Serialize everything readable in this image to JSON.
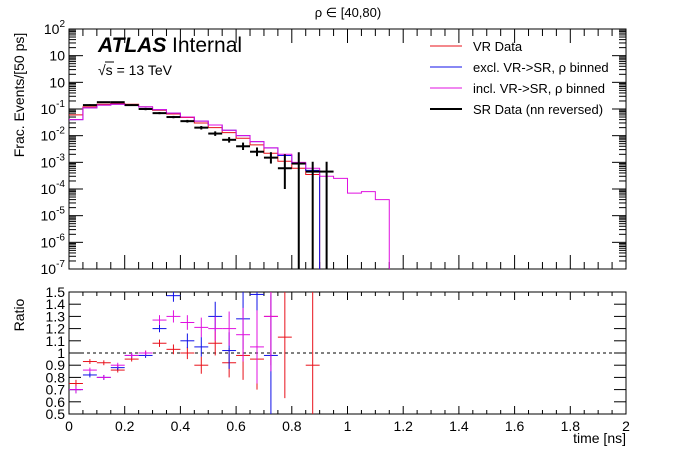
{
  "chart_data": [
    {
      "type": "line",
      "title": "ρ ∈ [40,80)",
      "experiment": "ATLAS",
      "status": "Internal",
      "energy_root": "√s",
      "energy_value": " = 13 TeV",
      "ylabel": "Frac. Events/[50 ps]",
      "yscale": "log",
      "ylim": [
        1e-07,
        100
      ],
      "xlim": [
        0,
        2
      ],
      "bin_width": 0.05,
      "y_ticks": [
        {
          "v": -7,
          "exp": "-7"
        },
        {
          "v": -6,
          "exp": "-6"
        },
        {
          "v": -5,
          "exp": "-5"
        },
        {
          "v": -4,
          "exp": "-4"
        },
        {
          "v": -3,
          "exp": "-3"
        },
        {
          "v": -2,
          "exp": "-2"
        },
        {
          "v": -1,
          "exp": "-1"
        },
        {
          "v": 0,
          "exp": ""
        },
        {
          "v": 1,
          "exp": ""
        },
        {
          "v": 2,
          "exp": "2"
        }
      ],
      "legend_position": "top-right",
      "legend": [
        {
          "label": "VR Data",
          "color": "#e8101a"
        },
        {
          "label": "excl. VR->SR, ρ binned",
          "color": "#1010e8"
        },
        {
          "label": "incl. VR->SR, ρ binned",
          "color": "#e010e0"
        },
        {
          "label": "SR Data (nn reversed)",
          "color": "#000000"
        }
      ],
      "series": [
        {
          "name": "VR Data",
          "color": "#e8101a",
          "kind": "step",
          "values": [
            0.06,
            0.12,
            0.15,
            0.16,
            0.15,
            0.12,
            0.09,
            0.065,
            0.048,
            0.03,
            0.02,
            0.013,
            0.008,
            0.0045,
            0.0022,
            0.0011,
            0.0006,
            0.00035
          ]
        },
        {
          "name": "excl. VR->SR, ρ binned",
          "color": "#1010e8",
          "kind": "step",
          "values": [
            0.04,
            0.11,
            0.14,
            0.15,
            0.14,
            0.12,
            0.095,
            0.07,
            0.05,
            0.035,
            0.025,
            0.016,
            0.01,
            0.006,
            0.0035,
            0.0018,
            0.0009,
            0.0005
          ]
        },
        {
          "name": "incl. VR->SR, ρ binned",
          "color": "#e010e0",
          "kind": "step",
          "values": [
            0.04,
            0.11,
            0.14,
            0.15,
            0.14,
            0.12,
            0.095,
            0.07,
            0.05,
            0.035,
            0.025,
            0.016,
            0.01,
            0.006,
            0.0035,
            0.002,
            0.001,
            0.0006,
            0.0003,
            0.00025,
            7e-05,
            8e-05,
            4e-05
          ]
        },
        {
          "name": "SR Data (nn reversed)",
          "color": "#000000",
          "kind": "step-err",
          "values": [
            null,
            0.14,
            0.18,
            0.18,
            0.14,
            0.1,
            0.07,
            0.05,
            0.035,
            0.02,
            0.012,
            0.007,
            0.004,
            0.0025,
            0.0015,
            0.0006,
            0.0009,
            0.00045,
            0.00045
          ],
          "err_lo": [
            null,
            0.13,
            0.17,
            0.17,
            0.13,
            0.09,
            0.064,
            0.045,
            0.031,
            0.017,
            0.0098,
            0.0055,
            0.0029,
            0.0017,
            0.0009,
            0.0001,
            1e-07,
            1e-07,
            1e-07
          ],
          "err_hi": [
            null,
            0.15,
            0.19,
            0.19,
            0.15,
            0.11,
            0.077,
            0.055,
            0.039,
            0.023,
            0.0145,
            0.0088,
            0.0055,
            0.0036,
            0.0024,
            0.002,
            0.0024,
            0.00105,
            0.00105
          ]
        }
      ]
    },
    {
      "type": "scatter",
      "ylabel": "Ratio",
      "xlabel": "time [ns]",
      "xlim": [
        0,
        2
      ],
      "ylim": [
        0.5,
        1.5
      ],
      "x_ticks": [
        "0",
        "0.2",
        "0.4",
        "0.6",
        "0.8",
        "1",
        "1.2",
        "1.4",
        "1.6",
        "1.8",
        "2"
      ],
      "y_ticks": [
        "0.5",
        "0.6",
        "0.7",
        "0.8",
        "0.9",
        "1",
        "1.1",
        "1.2",
        "1.3",
        "1.4",
        "1.5"
      ],
      "reference_line": 1,
      "series": [
        {
          "name": "VR Data",
          "color": "#e8101a",
          "x": [
            0.025,
            0.075,
            0.125,
            0.175,
            0.225,
            0.275,
            0.325,
            0.375,
            0.425,
            0.475,
            0.525,
            0.575,
            0.625,
            0.675,
            0.725,
            0.775,
            0.875
          ],
          "y": [
            0.75,
            0.93,
            0.92,
            0.86,
            0.95,
            1.0,
            1.08,
            1.03,
            1.0,
            0.9,
            1.08,
            0.92,
            0.98,
            0.95,
            1.3,
            1.13,
            0.9
          ],
          "err": [
            0.03,
            0.02,
            0.02,
            0.02,
            0.02,
            0.02,
            0.03,
            0.04,
            0.05,
            0.07,
            0.1,
            0.12,
            0.2,
            0.25,
            0.4,
            0.5,
            0.6
          ]
        },
        {
          "name": "excl. VR->SR, ρ binned",
          "color": "#1010e8",
          "x": [
            0.025,
            0.075,
            0.125,
            0.175,
            0.225,
            0.275,
            0.325,
            0.375,
            0.425,
            0.475,
            0.525,
            0.575,
            0.625,
            0.675,
            0.725
          ],
          "y": [
            0.7,
            0.82,
            0.8,
            0.88,
            0.98,
            0.98,
            1.2,
            1.47,
            1.1,
            1.05,
            1.3,
            1.02,
            1.28,
            1.48,
            0.98
          ],
          "err": [
            0.03,
            0.02,
            0.02,
            0.02,
            0.02,
            0.02,
            0.03,
            0.05,
            0.06,
            0.08,
            0.12,
            0.15,
            0.25,
            0.3,
            0.5
          ]
        },
        {
          "name": "incl. VR->SR, ρ binned",
          "color": "#e010e0",
          "x": [
            0.025,
            0.075,
            0.125,
            0.175,
            0.225,
            0.275,
            0.325,
            0.375,
            0.425,
            0.475,
            0.525,
            0.575,
            0.625,
            0.675,
            0.725
          ],
          "y": [
            0.7,
            0.86,
            0.8,
            0.9,
            0.98,
            1.0,
            1.27,
            1.3,
            1.25,
            1.21,
            1.2,
            1.2,
            1.15,
            1.05,
            1.3
          ],
          "err": [
            0.03,
            0.02,
            0.02,
            0.02,
            0.02,
            0.02,
            0.04,
            0.05,
            0.06,
            0.08,
            0.1,
            0.14,
            0.22,
            0.3,
            0.45
          ]
        }
      ]
    }
  ]
}
